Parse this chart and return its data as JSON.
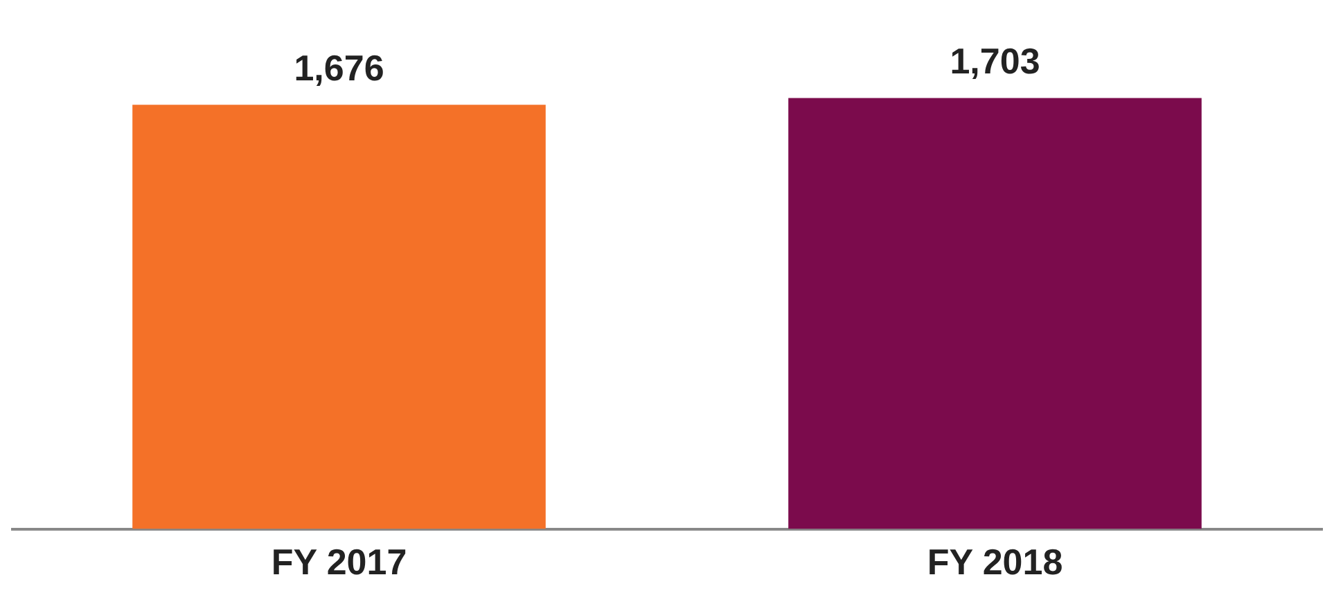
{
  "chart_data": {
    "type": "bar",
    "categories": [
      "FY 2017",
      "FY 2018"
    ],
    "values": [
      1676,
      1703
    ],
    "colors": [
      "#f47128",
      "#7b0b4c"
    ],
    "value_labels": [
      "1,676",
      "1,703"
    ],
    "grid": false,
    "legend": false
  }
}
